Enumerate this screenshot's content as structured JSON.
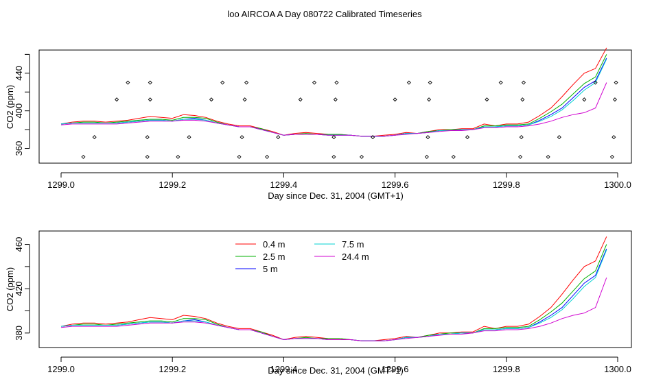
{
  "title": "loo AIRCOA A  Day 080722  Calibrated Timeseries",
  "colors": {
    "h04": "#ff0000",
    "h25": "#00b000",
    "h5": "#0000ff",
    "h75": "#00d0d0",
    "h244": "#d000d0",
    "points": "#000000"
  },
  "chart_data": [
    {
      "type": "line",
      "title": "",
      "xlabel": "Day since Dec. 31, 2004 (GMT+1)",
      "ylabel": "CO2 (ppm)",
      "xlim": [
        1299.0,
        1300.0
      ],
      "ylim": [
        348,
        461
      ],
      "xticks": [
        "1299.0",
        "1299.2",
        "1299.4",
        "1299.6",
        "1299.8",
        "1300.0"
      ],
      "yticks": [
        "360",
        "400",
        "440"
      ],
      "extra_ytick_marks": [
        380,
        420,
        460
      ],
      "x": [
        1299.0,
        1299.02,
        1299.04,
        1299.06,
        1299.08,
        1299.1,
        1299.12,
        1299.14,
        1299.16,
        1299.18,
        1299.2,
        1299.22,
        1299.24,
        1299.26,
        1299.28,
        1299.3,
        1299.32,
        1299.34,
        1299.36,
        1299.38,
        1299.4,
        1299.42,
        1299.44,
        1299.46,
        1299.48,
        1299.5,
        1299.52,
        1299.54,
        1299.56,
        1299.58,
        1299.6,
        1299.62,
        1299.64,
        1299.66,
        1299.68,
        1299.7,
        1299.72,
        1299.74,
        1299.76,
        1299.78,
        1299.8,
        1299.82,
        1299.84,
        1299.86,
        1299.88,
        1299.9,
        1299.92,
        1299.94,
        1299.96,
        1299.98
      ],
      "series": [
        {
          "name": "0.4 m",
          "color_key": "h04",
          "values": [
            386,
            388,
            389,
            389,
            388,
            389,
            390,
            392,
            394,
            393,
            392,
            396,
            395,
            393,
            389,
            386,
            384,
            384,
            381,
            378,
            374,
            376,
            377,
            376,
            375,
            375,
            374,
            373,
            373,
            374,
            375,
            377,
            376,
            378,
            380,
            380,
            381,
            381,
            386,
            384,
            386,
            386,
            388,
            395,
            403,
            415,
            428,
            440,
            445,
            467
          ]
        },
        {
          "name": "2.5 m",
          "color_key": "h25",
          "values": [
            386,
            387,
            388,
            388,
            387,
            388,
            389,
            390,
            391,
            391,
            390,
            393,
            393,
            392,
            388,
            385,
            383,
            383,
            381,
            377,
            374,
            375,
            376,
            375,
            375,
            375,
            374,
            373,
            373,
            373,
            374,
            376,
            376,
            378,
            379,
            380,
            380,
            380,
            384,
            384,
            385,
            385,
            386,
            392,
            399,
            407,
            418,
            429,
            436,
            460
          ]
        },
        {
          "name": "5 m",
          "color_key": "h5",
          "values": [
            386,
            387,
            387,
            387,
            387,
            387,
            388,
            389,
            390,
            390,
            389,
            391,
            392,
            390,
            387,
            385,
            383,
            383,
            380,
            377,
            374,
            375,
            375,
            375,
            374,
            374,
            374,
            373,
            373,
            373,
            374,
            376,
            376,
            377,
            379,
            379,
            380,
            380,
            383,
            383,
            384,
            384,
            385,
            390,
            396,
            403,
            414,
            425,
            432,
            456
          ]
        },
        {
          "name": "7.5 m",
          "color_key": "h75",
          "values": [
            386,
            387,
            387,
            387,
            387,
            387,
            388,
            389,
            390,
            390,
            389,
            391,
            391,
            390,
            387,
            385,
            383,
            383,
            380,
            377,
            374,
            375,
            375,
            375,
            374,
            374,
            374,
            373,
            373,
            373,
            374,
            376,
            376,
            377,
            379,
            379,
            380,
            380,
            383,
            383,
            384,
            384,
            385,
            389,
            394,
            401,
            411,
            422,
            430,
            455
          ]
        },
        {
          "name": "24.4 m",
          "color_key": "h244",
          "values": [
            385,
            386,
            386,
            386,
            386,
            386,
            387,
            388,
            389,
            389,
            389,
            390,
            390,
            389,
            387,
            385,
            383,
            383,
            380,
            377,
            374,
            375,
            375,
            375,
            374,
            374,
            374,
            373,
            373,
            373,
            374,
            375,
            376,
            377,
            378,
            379,
            379,
            380,
            382,
            382,
            383,
            383,
            384,
            386,
            389,
            393,
            396,
            398,
            403,
            430
          ]
        }
      ],
      "calibration_points": {
        "x": [
          1299.04,
          1299.06,
          1299.1,
          1299.12,
          1299.155,
          1299.155,
          1299.16,
          1299.16,
          1299.21,
          1299.23,
          1299.27,
          1299.29,
          1299.32,
          1299.325,
          1299.33,
          1299.333,
          1299.37,
          1299.39,
          1299.43,
          1299.455,
          1299.49,
          1299.49,
          1299.493,
          1299.495,
          1299.54,
          1299.56,
          1299.6,
          1299.625,
          1299.657,
          1299.659,
          1299.661,
          1299.663,
          1299.705,
          1299.73,
          1299.765,
          1299.79,
          1299.825,
          1299.827,
          1299.829,
          1299.831,
          1299.875,
          1299.895,
          1299.94,
          1299.96,
          1299.99,
          1299.993,
          1299.995,
          1299.997
        ],
        "y": [
          351,
          372,
          412,
          430,
          351,
          372,
          412,
          430,
          351,
          372,
          412,
          430,
          351,
          372,
          412,
          430,
          351,
          372,
          412,
          430,
          351,
          372,
          412,
          430,
          351,
          372,
          412,
          430,
          351,
          372,
          412,
          430,
          351,
          372,
          412,
          430,
          351,
          372,
          412,
          430,
          351,
          372,
          412,
          430,
          351,
          372,
          412,
          430
        ]
      }
    },
    {
      "type": "line",
      "title": "",
      "xlabel": "Day since Dec. 31, 2004 (GMT+1)",
      "ylabel": "CO2 (ppm)",
      "xlim": [
        1299.0,
        1300.0
      ],
      "ylim": [
        370,
        469
      ],
      "xticks": [
        "1299.0",
        "1299.2",
        "1299.4",
        "1299.6",
        "1299.8",
        "1300.0"
      ],
      "yticks": [
        "380",
        "420",
        "460"
      ],
      "extra_ytick_marks": [
        400,
        440
      ],
      "legend": {
        "position": "top-left-center",
        "entries": [
          "0.4 m",
          "2.5 m",
          "5 m",
          "7.5 m",
          "24.4 m"
        ]
      },
      "series_ref": 0
    }
  ]
}
